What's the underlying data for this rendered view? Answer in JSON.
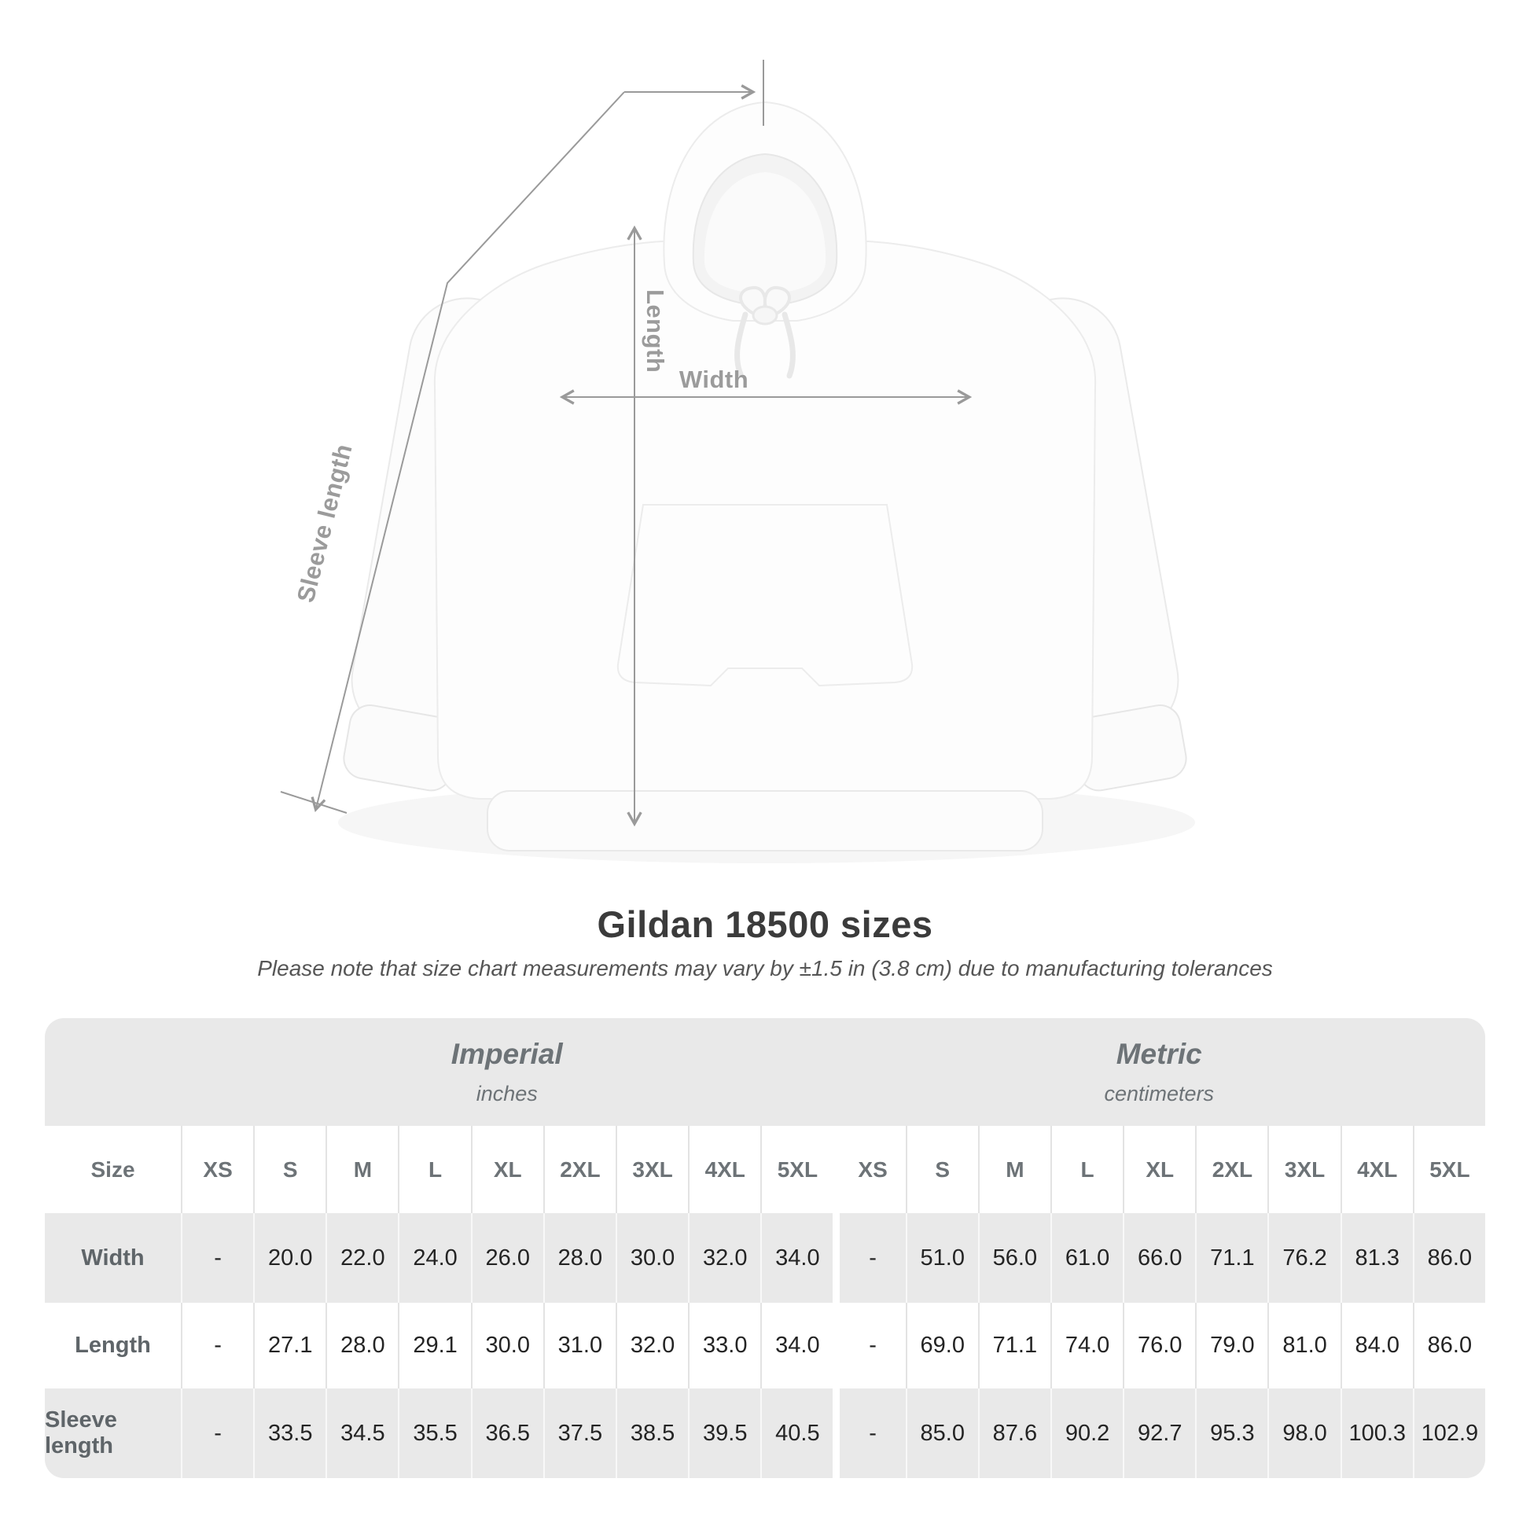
{
  "title": "Gildan 18500 sizes",
  "subtitle": "Please note that size chart measurements may vary by ±1.5 in (3.8 cm) due to manufacturing tolerances",
  "diagram": {
    "labels": {
      "length": "Length",
      "width": "Width",
      "sleeve": "Sleeve length"
    },
    "line_color": "#9a9a9a"
  },
  "colors": {
    "table_band": "#e9e9e9",
    "row_alt": "#e9e9e9",
    "heading_text": "#6d7377",
    "value_text": "#242424",
    "annotation": "#9b9b9b"
  },
  "table": {
    "size_header": "Size",
    "groups": [
      {
        "label": "Imperial",
        "sublabel": "inches"
      },
      {
        "label": "Metric",
        "sublabel": "centimeters"
      }
    ],
    "sizes": [
      "XS",
      "S",
      "M",
      "L",
      "XL",
      "2XL",
      "3XL",
      "4XL",
      "5XL"
    ],
    "rows": [
      {
        "label": "Width",
        "imperial": [
          "-",
          "20.0",
          "22.0",
          "24.0",
          "26.0",
          "28.0",
          "30.0",
          "32.0",
          "34.0"
        ],
        "metric": [
          "-",
          "51.0",
          "56.0",
          "61.0",
          "66.0",
          "71.1",
          "76.2",
          "81.3",
          "86.0"
        ]
      },
      {
        "label": "Length",
        "imperial": [
          "-",
          "27.1",
          "28.0",
          "29.1",
          "30.0",
          "31.0",
          "32.0",
          "33.0",
          "34.0"
        ],
        "metric": [
          "-",
          "69.0",
          "71.1",
          "74.0",
          "76.0",
          "79.0",
          "81.0",
          "84.0",
          "86.0"
        ]
      },
      {
        "label": "Sleeve length",
        "imperial": [
          "-",
          "33.5",
          "34.5",
          "35.5",
          "36.5",
          "37.5",
          "38.5",
          "39.5",
          "40.5"
        ],
        "metric": [
          "-",
          "85.0",
          "87.6",
          "90.2",
          "92.7",
          "95.3",
          "98.0",
          "100.3",
          "102.9"
        ]
      }
    ]
  }
}
